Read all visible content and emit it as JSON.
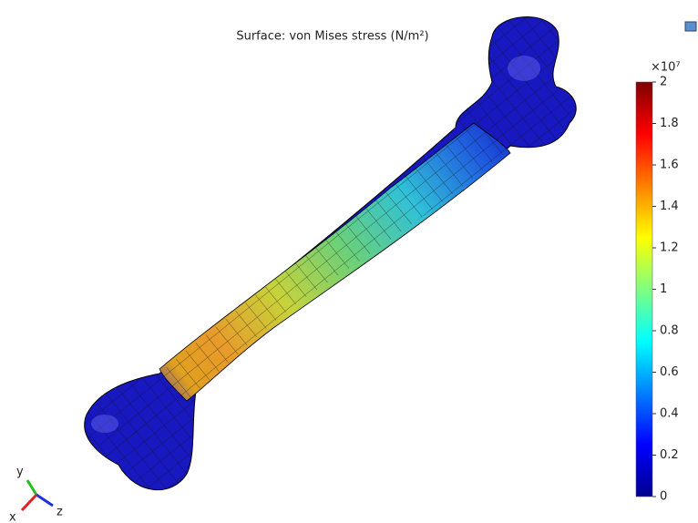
{
  "title": "Surface: von Mises stress (N/m²)",
  "colorbar": {
    "multiplier": "×10⁷",
    "ticks": [
      "0",
      "0.2",
      "0.4",
      "0.6",
      "0.8",
      "1",
      "1.2",
      "1.4",
      "1.6",
      "1.8",
      "2"
    ]
  },
  "axes_triad": {
    "x": "x",
    "y": "y",
    "z": "z"
  }
}
